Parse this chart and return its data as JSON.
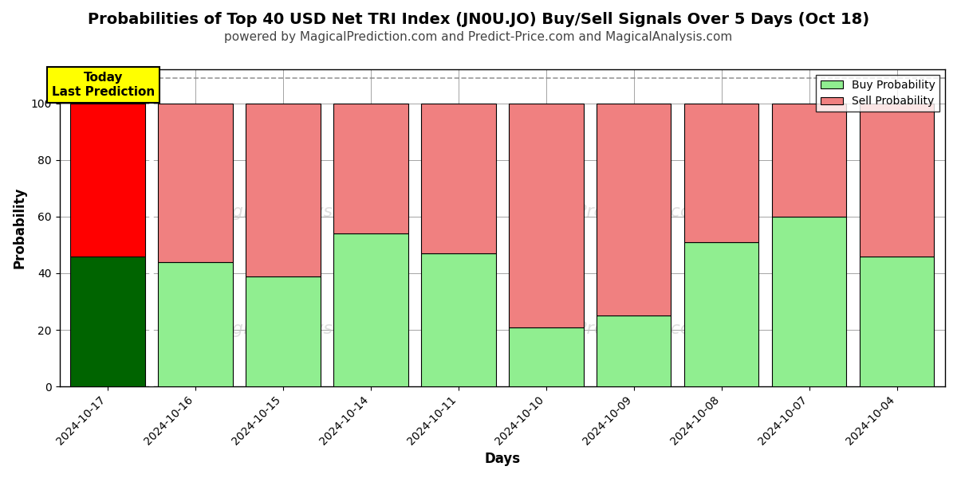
{
  "title": "Probabilities of Top 40 USD Net TRI Index (JN0U.JO) Buy/Sell Signals Over 5 Days (Oct 18)",
  "subtitle": "powered by MagicalPrediction.com and Predict-Price.com and MagicalAnalysis.com",
  "xlabel": "Days",
  "ylabel": "Probability",
  "dates": [
    "2024-10-17",
    "2024-10-16",
    "2024-10-15",
    "2024-10-14",
    "2024-10-11",
    "2024-10-10",
    "2024-10-09",
    "2024-10-08",
    "2024-10-07",
    "2024-10-04"
  ],
  "buy_probs": [
    46,
    44,
    39,
    54,
    47,
    21,
    25,
    51,
    60,
    46
  ],
  "sell_probs": [
    54,
    56,
    61,
    46,
    53,
    79,
    75,
    49,
    40,
    54
  ],
  "today_buy_color": "#006400",
  "today_sell_color": "#FF0000",
  "buy_color": "#90EE90",
  "sell_color": "#F08080",
  "bar_edge_color": "#000000",
  "ylim": [
    0,
    112
  ],
  "yticks": [
    0,
    20,
    40,
    60,
    80,
    100
  ],
  "dashed_line_y": 109,
  "annotation_text": "Today\nLast Prediction",
  "annotation_bg": "#FFFF00",
  "grid_color": "#808080",
  "background_color": "#FFFFFF",
  "title_fontsize": 14,
  "subtitle_fontsize": 11,
  "axis_label_fontsize": 12,
  "tick_fontsize": 10,
  "bar_width": 0.85
}
